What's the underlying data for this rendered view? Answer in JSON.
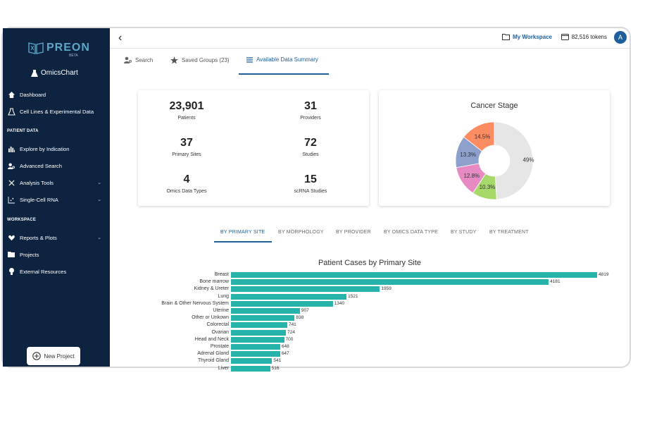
{
  "sidebar": {
    "logo": "PREON",
    "logo_badge": "BETA",
    "app_name": "OmicsChart",
    "items": [
      {
        "label": "Dashboard",
        "icon": "home-icon"
      },
      {
        "label": "Cell Lines & Experimental Data",
        "icon": "flask-icon"
      }
    ],
    "section_patient": "PATIENT DATA",
    "patient_items": [
      {
        "label": "Explore by Indication",
        "icon": "bar-chart-icon"
      },
      {
        "label": "Advanced Search",
        "icon": "person-search-icon"
      },
      {
        "label": "Analysis Tools",
        "icon": "tools-icon"
      },
      {
        "label": "Single-Cell RNA",
        "icon": "scatter-icon"
      }
    ],
    "section_workspace": "WORKSPACE",
    "workspace_items": [
      {
        "label": "Reports & Plots",
        "icon": "heart-icon"
      },
      {
        "label": "Projects",
        "icon": "folder-icon"
      },
      {
        "label": "External Resources",
        "icon": "bulb-icon"
      }
    ],
    "new_project": "New Project"
  },
  "header": {
    "workspace": "My Workspace",
    "tokens": "82,516 tokens",
    "avatar": "A"
  },
  "tabs": [
    {
      "label": "Search"
    },
    {
      "label": "Saved Groups (23)"
    },
    {
      "label": "Available Data Summary"
    }
  ],
  "stats": [
    {
      "value": "23,901",
      "label": "Patients"
    },
    {
      "value": "31",
      "label": "Providers"
    },
    {
      "value": "37",
      "label": "Primary Sites"
    },
    {
      "value": "72",
      "label": "Studies"
    },
    {
      "value": "4",
      "label": "Omics Data Types"
    },
    {
      "value": "15",
      "label": "scRNA Studies"
    }
  ],
  "pie": {
    "title": "Cancer Stage",
    "slices": [
      {
        "label": "49%",
        "value": 49,
        "color": "#e6e6e6"
      },
      {
        "label": "10.3%",
        "value": 10.3,
        "color": "#a6d96a"
      },
      {
        "label": "12.8%",
        "value": 12.8,
        "color": "#e78ac3"
      },
      {
        "label": "13.3%",
        "value": 13.3,
        "color": "#8da0cb"
      },
      {
        "label": "14.5%",
        "value": 14.5,
        "color": "#fc8d62"
      }
    ]
  },
  "subtabs": [
    "BY PRIMARY SITE",
    "BY MORPHOLOGY",
    "BY PROVIDER",
    "BY OMICS DATA TYPE",
    "BY STUDY",
    "BY TREATMENT"
  ],
  "chart_data": {
    "type": "bar",
    "orientation": "horizontal",
    "title": "Patient Cases by Primary Site",
    "categories": [
      "Breast",
      "Bone marrow",
      "Kidney & Ureter",
      "Lung",
      "Brain & Other Nervous System",
      "Uterine",
      "Other or Unkown",
      "Colorectal",
      "Ovarian",
      "Head and Neck",
      "Prostate",
      "Adrenal Gland",
      "Thyroid Gland",
      "Liver"
    ],
    "values": [
      4819,
      4181,
      1959,
      1521,
      1340,
      907,
      838,
      741,
      724,
      700,
      648,
      647,
      541,
      516
    ],
    "xlim": [
      0,
      4819
    ]
  }
}
